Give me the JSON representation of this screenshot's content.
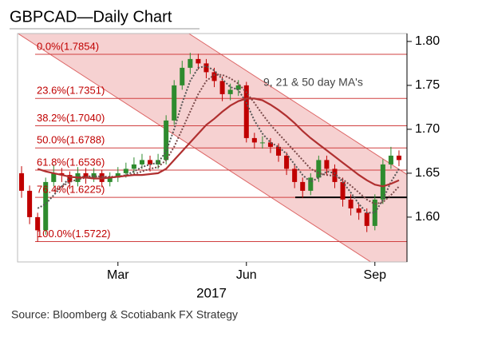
{
  "chart_data": {
    "type": "candlestick",
    "title": "GBPCAD—Daily Chart",
    "x_label": "2017",
    "source": "Source: Bloomberg & Scotiabank FX Strategy",
    "annotation": "9, 21 & 50 day MA's",
    "categories": [
      null,
      null,
      null,
      null,
      null,
      null,
      null,
      null,
      null,
      null,
      null,
      null,
      "Mar",
      null,
      null,
      null,
      null,
      null,
      null,
      null,
      null,
      null,
      null,
      null,
      null,
      null,
      null,
      null,
      "Jun",
      null,
      null,
      null,
      null,
      null,
      null,
      null,
      null,
      null,
      null,
      null,
      null,
      null,
      null,
      null,
      "Sep",
      null,
      null,
      null
    ],
    "open": [
      1.65,
      1.63,
      1.6,
      1.585,
      1.64,
      1.65,
      1.648,
      1.64,
      1.65,
      1.645,
      1.65,
      1.64,
      1.645,
      1.65,
      1.655,
      1.66,
      1.665,
      1.66,
      1.665,
      1.71,
      1.75,
      1.77,
      1.78,
      1.775,
      1.765,
      1.755,
      1.74,
      1.745,
      1.75,
      1.69,
      1.685,
      1.685,
      1.68,
      1.67,
      1.655,
      1.64,
      1.63,
      1.645,
      1.665,
      1.655,
      1.64,
      1.62,
      1.61,
      1.605,
      1.59,
      1.62,
      1.66,
      1.67
    ],
    "close": [
      1.63,
      1.6,
      1.585,
      1.64,
      1.65,
      1.648,
      1.64,
      1.65,
      1.645,
      1.65,
      1.64,
      1.645,
      1.65,
      1.655,
      1.66,
      1.665,
      1.66,
      1.665,
      1.71,
      1.75,
      1.77,
      1.78,
      1.775,
      1.765,
      1.755,
      1.74,
      1.745,
      1.75,
      1.69,
      1.685,
      1.685,
      1.68,
      1.67,
      1.655,
      1.64,
      1.63,
      1.645,
      1.665,
      1.655,
      1.64,
      1.62,
      1.61,
      1.605,
      1.59,
      1.62,
      1.66,
      1.67,
      1.665
    ],
    "high": [
      1.658,
      1.636,
      1.605,
      1.645,
      1.66,
      1.656,
      1.652,
      1.657,
      1.656,
      1.656,
      1.654,
      1.651,
      1.657,
      1.662,
      1.668,
      1.672,
      1.67,
      1.672,
      1.716,
      1.756,
      1.778,
      1.787,
      1.786,
      1.78,
      1.77,
      1.76,
      1.752,
      1.756,
      1.754,
      1.696,
      1.692,
      1.69,
      1.684,
      1.674,
      1.66,
      1.645,
      1.65,
      1.67,
      1.67,
      1.66,
      1.645,
      1.626,
      1.615,
      1.61,
      1.626,
      1.666,
      1.68,
      1.676
    ],
    "low": [
      1.622,
      1.592,
      1.572,
      1.58,
      1.635,
      1.64,
      1.632,
      1.635,
      1.638,
      1.64,
      1.634,
      1.635,
      1.64,
      1.645,
      1.65,
      1.655,
      1.652,
      1.655,
      1.66,
      1.705,
      1.745,
      1.763,
      1.768,
      1.758,
      1.748,
      1.732,
      1.733,
      1.738,
      1.685,
      1.678,
      1.678,
      1.673,
      1.663,
      1.648,
      1.633,
      1.622,
      1.625,
      1.64,
      1.648,
      1.633,
      1.612,
      1.602,
      1.597,
      1.583,
      1.585,
      1.615,
      1.655,
      1.658
    ],
    "up_color": "#2e8b2e",
    "down_color": "#c00000",
    "series": [
      {
        "color": "#555555",
        "dashed": true,
        "values": [
          null,
          null,
          1.61,
          1.615,
          1.625,
          1.635,
          1.645,
          1.646,
          1.646,
          1.647,
          1.646,
          1.645,
          1.646,
          1.648,
          1.652,
          1.657,
          1.66,
          1.662,
          1.675,
          1.7,
          1.73,
          1.755,
          1.77,
          1.772,
          1.767,
          1.757,
          1.748,
          1.745,
          1.73,
          1.71,
          1.695,
          1.685,
          1.68,
          1.672,
          1.66,
          1.648,
          1.64,
          1.645,
          1.652,
          1.65,
          1.64,
          1.628,
          1.615,
          1.605,
          1.605,
          1.62,
          1.64,
          1.655
        ]
      },
      {
        "color": "#7a4a4a",
        "dashed": true,
        "values": [
          null,
          null,
          null,
          null,
          1.63,
          1.635,
          1.64,
          1.643,
          1.645,
          1.646,
          1.646,
          1.646,
          1.646,
          1.647,
          1.649,
          1.652,
          1.655,
          1.657,
          1.665,
          1.68,
          1.7,
          1.72,
          1.74,
          1.755,
          1.762,
          1.762,
          1.758,
          1.752,
          1.742,
          1.73,
          1.717,
          1.705,
          1.695,
          1.685,
          1.675,
          1.665,
          1.655,
          1.65,
          1.648,
          1.647,
          1.643,
          1.636,
          1.628,
          1.62,
          1.615,
          1.617,
          1.625,
          1.635
        ]
      },
      {
        "color": "#b03030",
        "dashed": false,
        "values": [
          null,
          null,
          1.655,
          1.652,
          1.65,
          1.648,
          1.646,
          1.645,
          1.645,
          1.644,
          1.644,
          1.645,
          1.646,
          1.647,
          1.648,
          1.648,
          1.649,
          1.65,
          1.655,
          1.665,
          1.675,
          1.685,
          1.695,
          1.705,
          1.712,
          1.72,
          1.727,
          1.732,
          1.735,
          1.735,
          1.733,
          1.728,
          1.722,
          1.715,
          1.707,
          1.698,
          1.69,
          1.683,
          1.676,
          1.669,
          1.662,
          1.655,
          1.648,
          1.642,
          1.637,
          1.635,
          1.638,
          1.642
        ]
      }
    ],
    "fib_levels": [
      {
        "label": "0.0%(1.7854)",
        "value": 1.7854
      },
      {
        "label": "23.6%(1.7351)",
        "value": 1.7351
      },
      {
        "label": "38.2%(1.7040)",
        "value": 1.704
      },
      {
        "label": "50.0%(1.6788)",
        "value": 1.6788
      },
      {
        "label": "61.8%(1.6536)",
        "value": 1.6536
      },
      {
        "label": "76.4%(1.6225)",
        "value": 1.6225
      },
      {
        "label": "100.0%(1.5722)",
        "value": 1.5722
      }
    ],
    "fib_color": "#d04040",
    "support": 1.6225,
    "channel": {
      "upper": [
        1.932,
        1.6545
      ],
      "lower": [
        1.8064,
        1.5282
      ],
      "color": "#f4c6c6",
      "edge": "#d66"
    },
    "ylim": [
      1.549,
      1.809
    ],
    "yticks": [
      {
        "value": 1.8,
        "label": "1.80"
      },
      1.75,
      {
        "value": 1.7,
        "label": "1.70"
      },
      1.65,
      {
        "value": 1.6,
        "label": "1.60"
      }
    ]
  }
}
